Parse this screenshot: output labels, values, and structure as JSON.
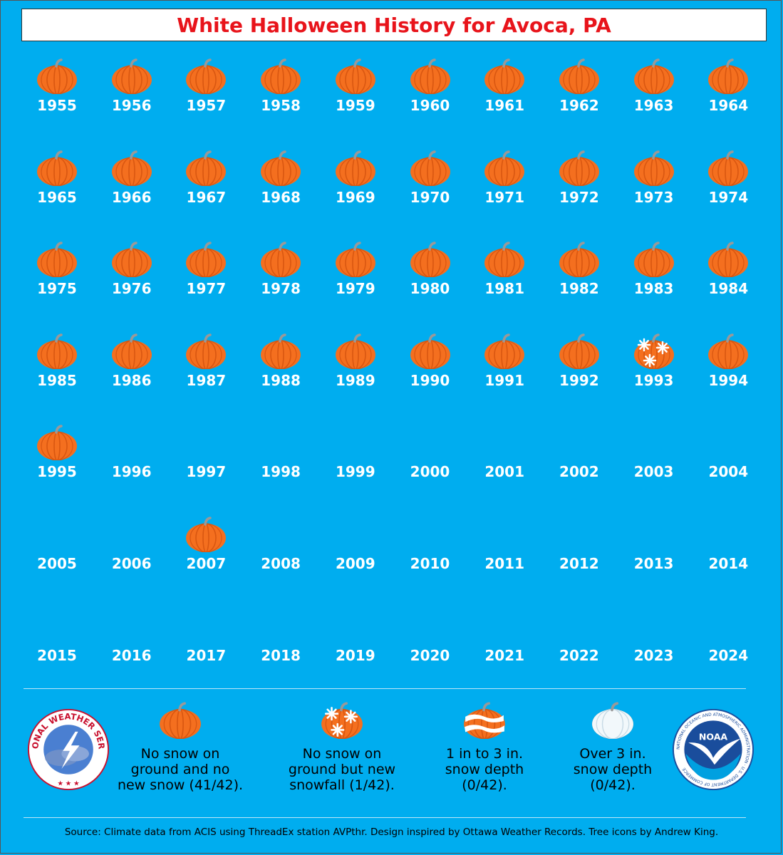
{
  "title": "White Halloween History for Avoca, PA",
  "colors": {
    "background": "#00adef",
    "title_text": "#e8141b",
    "pumpkin": "#f46f1f",
    "pumpkin_stripe": "#d95711",
    "stem": "#999999",
    "year_text": "#ffffff"
  },
  "chart_data": {
    "type": "table",
    "title": "White Halloween History for Avoca, PA",
    "columns": 10,
    "categories": [
      {
        "key": "no_snow",
        "label": "No snow on\nground and no\nnew snow (41/42).",
        "icon": "pumpkin-icon"
      },
      {
        "key": "new_snowfall",
        "label": "No snow on\nground but new\nsnowfall (1/42).",
        "icon": "snowflake-pumpkin-icon"
      },
      {
        "key": "snow_1_3",
        "label": "1 in to 3 in.\nsnow depth\n(0/42).",
        "icon": "partly-snowy-pumpkin-icon"
      },
      {
        "key": "snow_over_3",
        "label": "Over 3 in.\nsnow depth\n(0/42).",
        "icon": "snow-covered-pumpkin-icon"
      }
    ],
    "years": [
      {
        "year": 1955,
        "category": "no_snow"
      },
      {
        "year": 1956,
        "category": "no_snow"
      },
      {
        "year": 1957,
        "category": "no_snow"
      },
      {
        "year": 1958,
        "category": "no_snow"
      },
      {
        "year": 1959,
        "category": "no_snow"
      },
      {
        "year": 1960,
        "category": "no_snow"
      },
      {
        "year": 1961,
        "category": "no_snow"
      },
      {
        "year": 1962,
        "category": "no_snow"
      },
      {
        "year": 1963,
        "category": "no_snow"
      },
      {
        "year": 1964,
        "category": "no_snow"
      },
      {
        "year": 1965,
        "category": "no_snow"
      },
      {
        "year": 1966,
        "category": "no_snow"
      },
      {
        "year": 1967,
        "category": "no_snow"
      },
      {
        "year": 1968,
        "category": "no_snow"
      },
      {
        "year": 1969,
        "category": "no_snow"
      },
      {
        "year": 1970,
        "category": "no_snow"
      },
      {
        "year": 1971,
        "category": "no_snow"
      },
      {
        "year": 1972,
        "category": "no_snow"
      },
      {
        "year": 1973,
        "category": "no_snow"
      },
      {
        "year": 1974,
        "category": "no_snow"
      },
      {
        "year": 1975,
        "category": "no_snow"
      },
      {
        "year": 1976,
        "category": "no_snow"
      },
      {
        "year": 1977,
        "category": "no_snow"
      },
      {
        "year": 1978,
        "category": "no_snow"
      },
      {
        "year": 1979,
        "category": "no_snow"
      },
      {
        "year": 1980,
        "category": "no_snow"
      },
      {
        "year": 1981,
        "category": "no_snow"
      },
      {
        "year": 1982,
        "category": "no_snow"
      },
      {
        "year": 1983,
        "category": "no_snow"
      },
      {
        "year": 1984,
        "category": "no_snow"
      },
      {
        "year": 1985,
        "category": "no_snow"
      },
      {
        "year": 1986,
        "category": "no_snow"
      },
      {
        "year": 1987,
        "category": "no_snow"
      },
      {
        "year": 1988,
        "category": "no_snow"
      },
      {
        "year": 1989,
        "category": "no_snow"
      },
      {
        "year": 1990,
        "category": "no_snow"
      },
      {
        "year": 1991,
        "category": "no_snow"
      },
      {
        "year": 1992,
        "category": "no_snow"
      },
      {
        "year": 1993,
        "category": "new_snowfall"
      },
      {
        "year": 1994,
        "category": "no_snow"
      },
      {
        "year": 1995,
        "category": "no_snow"
      },
      {
        "year": 1996,
        "category": null
      },
      {
        "year": 1997,
        "category": null
      },
      {
        "year": 1998,
        "category": null
      },
      {
        "year": 1999,
        "category": null
      },
      {
        "year": 2000,
        "category": null
      },
      {
        "year": 2001,
        "category": null
      },
      {
        "year": 2002,
        "category": null
      },
      {
        "year": 2003,
        "category": null
      },
      {
        "year": 2004,
        "category": null
      },
      {
        "year": 2005,
        "category": null
      },
      {
        "year": 2006,
        "category": null
      },
      {
        "year": 2007,
        "category": "no_snow"
      },
      {
        "year": 2008,
        "category": null
      },
      {
        "year": 2009,
        "category": null
      },
      {
        "year": 2010,
        "category": null
      },
      {
        "year": 2011,
        "category": null
      },
      {
        "year": 2012,
        "category": null
      },
      {
        "year": 2013,
        "category": null
      },
      {
        "year": 2014,
        "category": null
      },
      {
        "year": 2015,
        "category": null
      },
      {
        "year": 2016,
        "category": null
      },
      {
        "year": 2017,
        "category": null
      },
      {
        "year": 2018,
        "category": null
      },
      {
        "year": 2019,
        "category": null
      },
      {
        "year": 2020,
        "category": null
      },
      {
        "year": 2021,
        "category": null
      },
      {
        "year": 2022,
        "category": null
      },
      {
        "year": 2023,
        "category": null
      },
      {
        "year": 2024,
        "category": null
      }
    ]
  },
  "logos": {
    "nws": {
      "text": "NATIONAL WEATHER SERVICE",
      "icon": "nws-logo-icon"
    },
    "noaa": {
      "center_text": "NOAA",
      "ring_text": "NATIONAL OCEANIC AND ATMOSPHERIC ADMINISTRATION · U.S. DEPARTMENT OF COMMERCE",
      "icon": "noaa-logo-icon"
    }
  },
  "source": "Source: Climate data from ACIS using ThreadEx station AVPthr. Design inspired by Ottawa Weather Records. Tree icons by Andrew King."
}
